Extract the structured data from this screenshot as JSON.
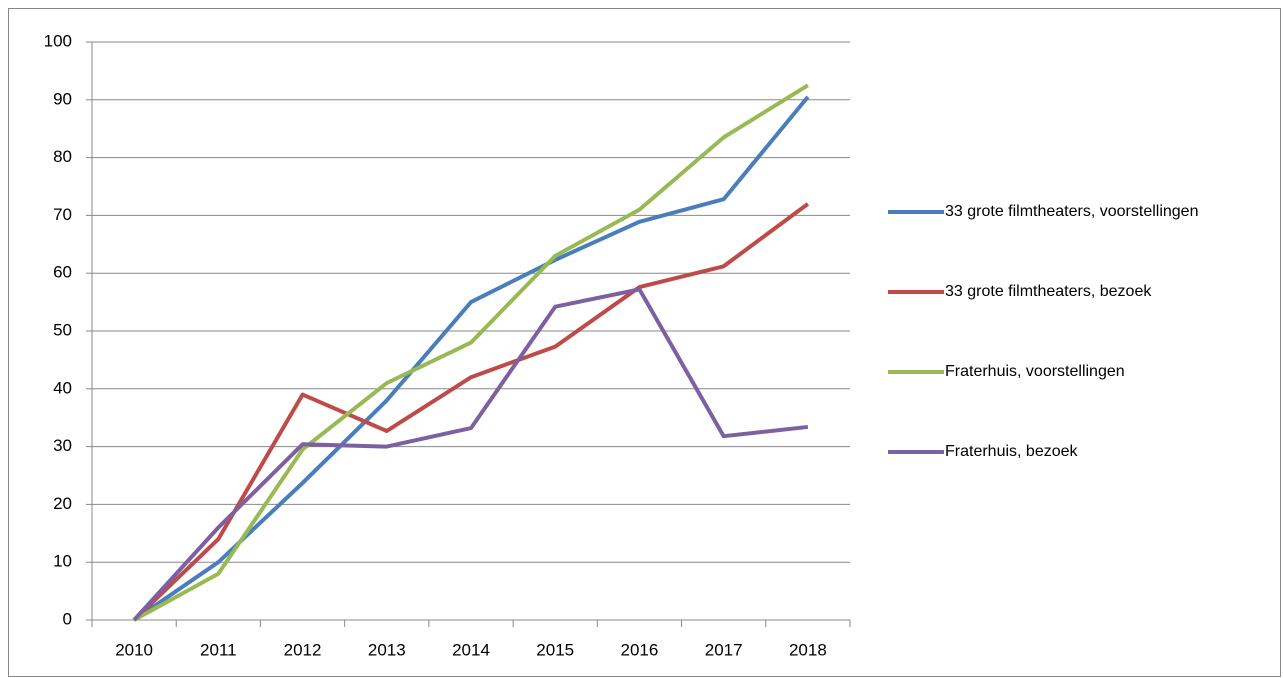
{
  "chart_data": {
    "type": "line",
    "categories": [
      "2010",
      "2011",
      "2012",
      "2013",
      "2014",
      "2015",
      "2016",
      "2017",
      "2018"
    ],
    "series": [
      {
        "name": "33 grote filmtheaters, voorstellingen",
        "color": "#4a7ebb",
        "values": [
          0,
          10,
          23.7,
          38,
          55,
          62.3,
          68.9,
          72.8,
          90.5
        ]
      },
      {
        "name": "33 grote filmtheaters, bezoek",
        "color": "#be4b48",
        "values": [
          0,
          14,
          39,
          32.7,
          42,
          47.3,
          57.6,
          61.2,
          72
        ]
      },
      {
        "name": "Fraterhuis, voorstellingen",
        "color": "#98b954",
        "values": [
          0,
          8,
          29.5,
          41,
          48,
          63,
          71,
          83.5,
          92.5
        ]
      },
      {
        "name": "Fraterhuis, bezoek",
        "color": "#7d60a0",
        "values": [
          0,
          16,
          30.4,
          30,
          33.2,
          54.2,
          57.2,
          31.8,
          33.4
        ]
      }
    ],
    "ylim": [
      0,
      100
    ],
    "yticks": [
      0,
      10,
      20,
      30,
      40,
      50,
      60,
      70,
      80,
      90,
      100
    ],
    "grid": true,
    "legend": "right"
  }
}
